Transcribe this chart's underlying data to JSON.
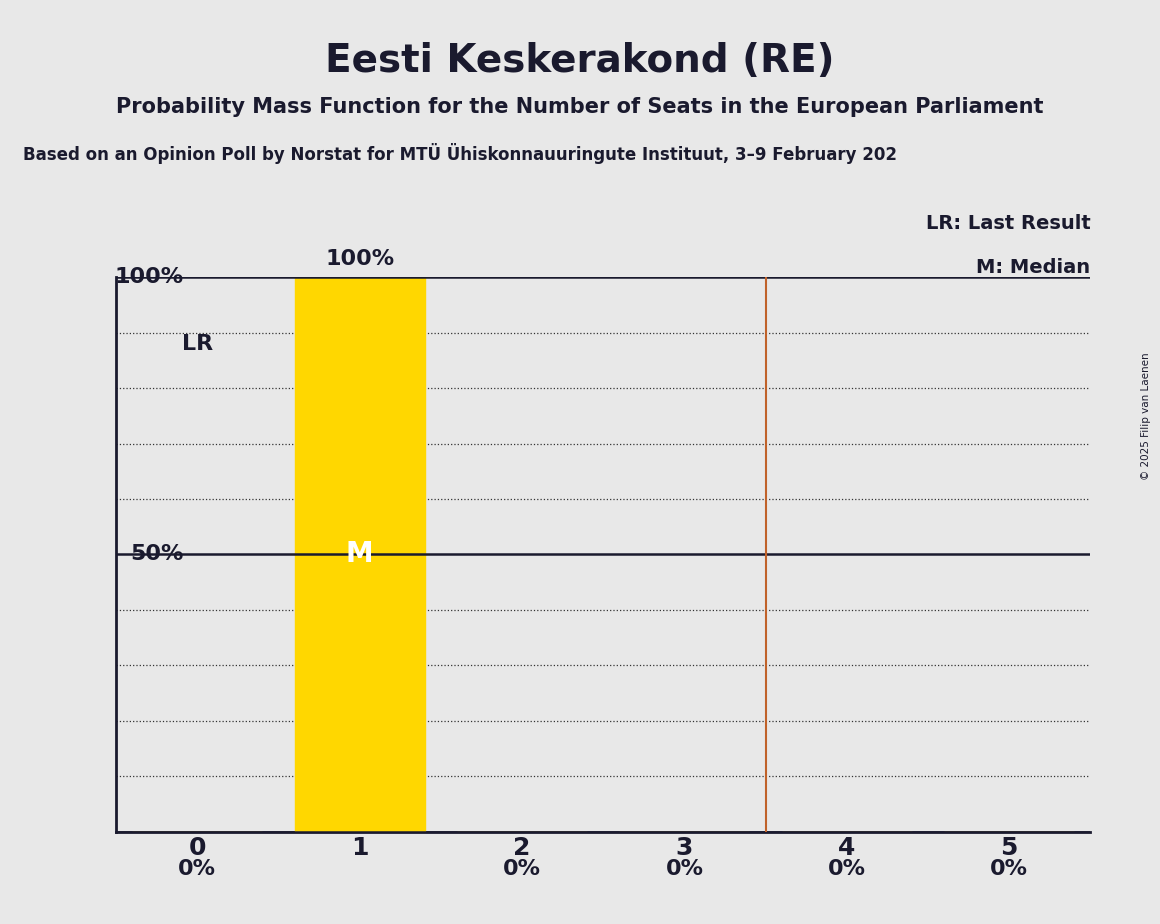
{
  "title": "Eesti Keskerakond (RE)",
  "subtitle": "Probability Mass Function for the Number of Seats in the European Parliament",
  "source_line": "Based on an Opinion Poll by Norstat for MTÜ Ühiskonnauuringute Instituut, 3–9 February 202",
  "copyright": "© 2025 Filip van Laenen",
  "categories": [
    0,
    1,
    2,
    3,
    4,
    5
  ],
  "values": [
    0.0,
    1.0,
    0.0,
    0.0,
    0.0,
    0.0
  ],
  "bar_color": "#FFD700",
  "median_seat": 1,
  "last_result_seat": 3.5,
  "last_result_bar": 0,
  "background_color": "#E8E8E8",
  "title_fontsize": 28,
  "subtitle_fontsize": 15,
  "source_fontsize": 12,
  "minor_yticks": [
    0.0,
    0.1,
    0.2,
    0.3,
    0.4,
    0.5,
    0.6,
    0.7,
    0.8,
    0.9,
    1.0
  ],
  "major_yticks": [
    0.0,
    0.5,
    1.0
  ],
  "lr_label": "LR",
  "median_label": "M",
  "legend_lr": "LR: Last Result",
  "legend_m": "M: Median",
  "bar_width": 0.8,
  "lr_line_color": "#C0622A",
  "solid_line_color": "#1a1a2e",
  "dotted_line_color": "#333333",
  "text_color": "#1a1a2e",
  "label_color_on_bar": "#ffffff"
}
